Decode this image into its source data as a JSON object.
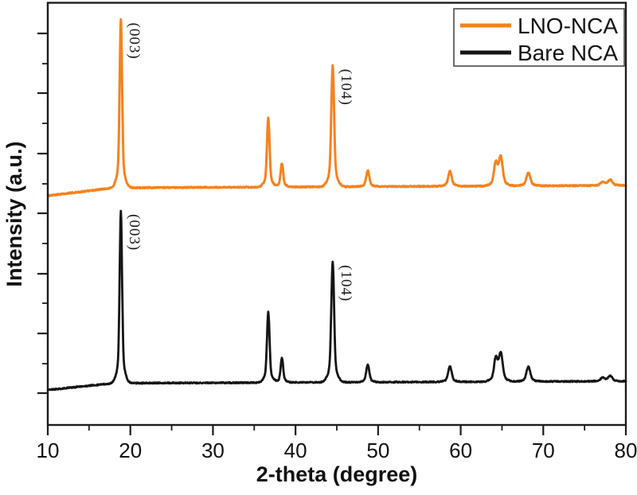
{
  "chart_data": {
    "type": "line",
    "title": "",
    "xlabel": "2-theta (degree)",
    "ylabel": "Intensity (a.u.)",
    "xlim": [
      10,
      80
    ],
    "x_ticks_major": [
      10,
      20,
      30,
      40,
      50,
      60,
      70,
      80
    ],
    "x_ticks_minor": [
      15,
      25,
      35,
      45,
      55,
      65,
      75
    ],
    "y_axis_note": "arbitrary units, no numeric labels; two patterns vertically offset",
    "legend": {
      "position": "top-right"
    },
    "series": [
      {
        "name": "LNO-NCA",
        "color": "#F6821E",
        "peaks": [
          {
            "two_theta": 18.85,
            "rel_intensity": 100,
            "fwhm_deg": 0.33,
            "hkl": "(003)"
          },
          {
            "two_theta": 36.7,
            "rel_intensity": 41,
            "fwhm_deg": 0.35
          },
          {
            "two_theta": 38.35,
            "rel_intensity": 14,
            "fwhm_deg": 0.35
          },
          {
            "two_theta": 44.5,
            "rel_intensity": 72,
            "fwhm_deg": 0.38,
            "hkl": "(104)"
          },
          {
            "two_theta": 48.75,
            "rel_intensity": 9.5,
            "fwhm_deg": 0.42
          },
          {
            "two_theta": 58.7,
            "rel_intensity": 9,
            "fwhm_deg": 0.47
          },
          {
            "two_theta": 64.25,
            "rel_intensity": 13,
            "fwhm_deg": 0.47
          },
          {
            "two_theta": 64.85,
            "rel_intensity": 17,
            "fwhm_deg": 0.52
          },
          {
            "two_theta": 68.2,
            "rel_intensity": 8,
            "fwhm_deg": 0.52
          },
          {
            "two_theta": 77.2,
            "rel_intensity": 2,
            "fwhm_deg": 0.6
          },
          {
            "two_theta": 78.1,
            "rel_intensity": 3.3,
            "fwhm_deg": 0.6
          }
        ]
      },
      {
        "name": "Bare NCA",
        "color": "#151515",
        "peaks": [
          {
            "two_theta": 18.85,
            "rel_intensity": 100,
            "fwhm_deg": 0.33,
            "hkl": "(003)"
          },
          {
            "two_theta": 36.7,
            "rel_intensity": 41,
            "fwhm_deg": 0.35
          },
          {
            "two_theta": 38.35,
            "rel_intensity": 14,
            "fwhm_deg": 0.35
          },
          {
            "two_theta": 44.5,
            "rel_intensity": 70,
            "fwhm_deg": 0.38,
            "hkl": "(104)"
          },
          {
            "two_theta": 48.75,
            "rel_intensity": 10,
            "fwhm_deg": 0.42
          },
          {
            "two_theta": 58.7,
            "rel_intensity": 9,
            "fwhm_deg": 0.47
          },
          {
            "two_theta": 64.25,
            "rel_intensity": 13,
            "fwhm_deg": 0.47
          },
          {
            "two_theta": 64.85,
            "rel_intensity": 16,
            "fwhm_deg": 0.52
          },
          {
            "two_theta": 68.2,
            "rel_intensity": 8.5,
            "fwhm_deg": 0.52
          },
          {
            "two_theta": 77.2,
            "rel_intensity": 2,
            "fwhm_deg": 0.6
          },
          {
            "two_theta": 78.1,
            "rel_intensity": 3,
            "fwhm_deg": 0.6
          }
        ]
      }
    ]
  }
}
